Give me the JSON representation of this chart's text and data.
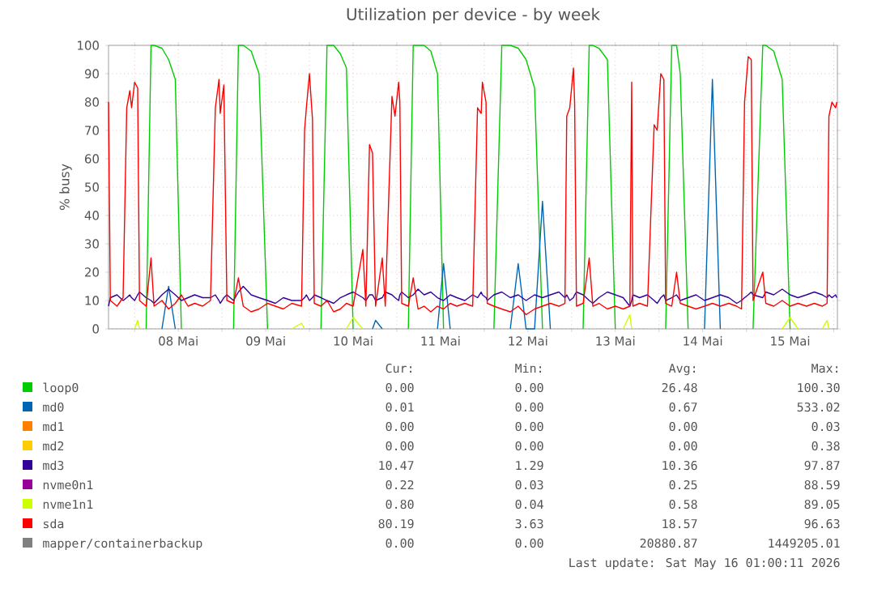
{
  "chart_data": {
    "type": "line",
    "title": "Utilization per device - by week",
    "ylabel": "% busy",
    "x": [
      "2026-05-07T16:50",
      "2026-05-07T17:20",
      "2026-05-07T19:10",
      "2026-05-07T20:50",
      "2026-05-07T21:50",
      "2026-05-07T22:40",
      "2026-05-07T23:10",
      "2026-05-08T00:00",
      "2026-05-08T00:50",
      "2026-05-08T01:20",
      "2026-05-08T03:10",
      "2026-05-08T04:30",
      "2026-05-08T05:20",
      "2026-05-08T07:30",
      "2026-05-08T09:20",
      "2026-05-08T11:10",
      "2026-05-08T12:50",
      "2026-05-08T14:40",
      "2026-05-08T16:30",
      "2026-05-08T18:40",
      "2026-05-08T20:50",
      "2026-05-08T22:10",
      "2026-05-08T23:10",
      "2026-05-08T23:30",
      "2026-05-09T00:30",
      "2026-05-09T01:20",
      "2026-05-09T03:10",
      "2026-05-09T04:30",
      "2026-05-09T05:50",
      "2026-05-09T08:00",
      "2026-05-09T10:10",
      "2026-05-09T12:30",
      "2026-05-09T14:40",
      "2026-05-09T16:50",
      "2026-05-09T19:10",
      "2026-05-09T21:50",
      "2026-05-09T22:40",
      "2026-05-09T23:10",
      "2026-05-10T00:00",
      "2026-05-10T00:50",
      "2026-05-10T01:20",
      "2026-05-10T03:10",
      "2026-05-10T04:50",
      "2026-05-10T06:40",
      "2026-05-10T08:30",
      "2026-05-10T10:10",
      "2026-05-10T12:00",
      "2026-05-10T14:40",
      "2026-05-10T15:30",
      "2026-05-10T16:30",
      "2026-05-10T17:20",
      "2026-05-10T18:10",
      "2026-05-10T20:00",
      "2026-05-10T20:50",
      "2026-05-10T22:40",
      "2026-05-10T23:30",
      "2026-05-11T00:30",
      "2026-05-11T00:50",
      "2026-05-11T01:20",
      "2026-05-11T03:10",
      "2026-05-11T04:30",
      "2026-05-11T05:50",
      "2026-05-11T07:30",
      "2026-05-11T09:20",
      "2026-05-11T11:10",
      "2026-05-11T12:50",
      "2026-05-11T14:40",
      "2026-05-11T16:30",
      "2026-05-11T18:40",
      "2026-05-11T20:50",
      "2026-05-11T22:10",
      "2026-05-11T23:10",
      "2026-05-11T23:30",
      "2026-05-12T00:30",
      "2026-05-12T00:50",
      "2026-05-12T02:40",
      "2026-05-12T04:50",
      "2026-05-12T07:10",
      "2026-05-12T09:20",
      "2026-05-12T11:30",
      "2026-05-12T13:50",
      "2026-05-12T16:00",
      "2026-05-12T18:10",
      "2026-05-12T20:30",
      "2026-05-12T22:10",
      "2026-05-12T22:40",
      "2026-05-12T23:30",
      "2026-05-13T00:30",
      "2026-05-13T00:50",
      "2026-05-13T01:20",
      "2026-05-13T03:10",
      "2026-05-13T04:50",
      "2026-05-13T05:50",
      "2026-05-13T07:30",
      "2026-05-13T09:50",
      "2026-05-13T12:00",
      "2026-05-13T14:10",
      "2026-05-13T16:00",
      "2026-05-13T16:30",
      "2026-05-13T16:50",
      "2026-05-13T18:40",
      "2026-05-13T20:50",
      "2026-05-13T22:40",
      "2026-05-13T23:30",
      "2026-05-14T00:30",
      "2026-05-14T01:20",
      "2026-05-14T01:50",
      "2026-05-14T03:30",
      "2026-05-14T04:50",
      "2026-05-14T05:50",
      "2026-05-14T08:00",
      "2026-05-14T10:10",
      "2026-05-14T12:30",
      "2026-05-14T14:40",
      "2026-05-14T16:50",
      "2026-05-14T19:10",
      "2026-05-14T21:20",
      "2026-05-14T22:40",
      "2026-05-14T23:30",
      "2026-05-15T00:30",
      "2026-05-15T01:20",
      "2026-05-15T01:50",
      "2026-05-15T04:30",
      "2026-05-15T05:20",
      "2026-05-15T07:30",
      "2026-05-15T09:50",
      "2026-05-15T12:00",
      "2026-05-15T14:10",
      "2026-05-15T16:30",
      "2026-05-15T18:40",
      "2026-05-15T20:50",
      "2026-05-15T22:10",
      "2026-05-15T22:40",
      "2026-05-15T23:30",
      "2026-05-16T00:30",
      "2026-05-16T00:50"
    ],
    "series": [
      {
        "name": "loop0",
        "color": "#00cc00",
        "values": [
          null,
          null,
          null,
          null,
          null,
          null,
          null,
          null,
          null,
          null,
          0,
          100,
          100,
          99,
          95,
          88,
          0,
          null,
          null,
          null,
          null,
          null,
          null,
          null,
          null,
          null,
          0,
          100,
          100,
          98,
          90,
          0,
          null,
          null,
          null,
          null,
          null,
          null,
          null,
          null,
          null,
          0,
          100,
          100,
          97,
          92,
          0,
          null,
          null,
          null,
          null,
          null,
          null,
          null,
          null,
          null,
          null,
          null,
          null,
          0,
          100,
          100,
          100,
          98,
          90,
          0,
          null,
          null,
          null,
          null,
          null,
          null,
          null,
          null,
          null,
          0,
          100,
          100,
          99,
          95,
          85,
          0,
          null,
          null,
          null,
          null,
          null,
          null,
          null,
          null,
          0,
          100,
          100,
          99,
          95,
          0,
          null,
          null,
          null,
          null,
          null,
          null,
          null,
          null,
          null,
          null,
          0,
          100,
          100,
          90,
          0,
          null,
          null,
          null,
          null,
          null,
          null,
          null,
          null,
          null,
          null,
          0,
          100,
          100,
          98,
          88,
          0,
          null,
          null,
          null,
          null,
          null,
          null,
          null,
          null,
          null
        ]
      },
      {
        "name": "md0",
        "color": "#0066b3",
        "values": [
          null,
          null,
          null,
          null,
          null,
          null,
          null,
          null,
          null,
          null,
          null,
          null,
          null,
          0,
          15,
          0,
          null,
          null,
          null,
          null,
          null,
          null,
          null,
          null,
          null,
          null,
          null,
          null,
          null,
          null,
          null,
          null,
          null,
          null,
          null,
          null,
          null,
          null,
          null,
          null,
          null,
          null,
          null,
          null,
          null,
          null,
          null,
          null,
          null,
          null,
          0,
          3,
          0,
          null,
          null,
          null,
          null,
          null,
          null,
          null,
          null,
          null,
          null,
          null,
          0,
          23,
          0,
          null,
          null,
          null,
          null,
          null,
          null,
          null,
          null,
          null,
          null,
          0,
          23,
          0,
          0,
          45,
          0,
          null,
          null,
          null,
          null,
          null,
          null,
          null,
          null,
          null,
          null,
          null,
          null,
          null,
          null,
          null,
          null,
          null,
          null,
          null,
          null,
          null,
          null,
          null,
          null,
          null,
          null,
          null,
          null,
          null,
          0,
          88,
          0,
          null,
          null,
          null,
          null,
          null,
          null,
          null,
          null,
          null,
          null,
          null,
          null,
          null,
          null,
          null,
          null,
          null,
          null,
          null,
          null,
          null
        ]
      },
      {
        "name": "md1",
        "color": "#ff8000",
        "values": [
          null,
          null,
          null,
          null,
          null,
          null,
          null,
          null,
          null,
          null,
          null,
          null,
          null,
          null,
          null,
          null,
          null,
          null,
          null,
          null,
          null,
          null,
          null,
          null,
          null,
          null,
          null,
          null,
          null,
          null,
          null,
          null,
          null,
          null,
          null,
          null,
          null,
          null,
          null,
          null,
          null,
          null,
          null,
          null,
          null,
          null,
          null,
          null,
          null,
          null,
          null,
          null,
          null,
          null,
          null,
          null,
          null,
          null,
          null,
          null,
          null,
          null,
          null,
          null,
          null,
          null,
          null,
          null,
          null,
          null,
          null,
          null,
          null,
          null,
          null,
          null,
          null,
          null,
          null,
          null,
          null,
          null,
          null,
          null,
          null,
          null,
          null,
          null,
          null,
          null,
          null,
          null,
          null,
          null,
          null,
          null,
          null,
          null,
          null,
          null,
          null,
          null,
          null,
          null,
          null,
          null,
          null,
          null,
          null,
          null,
          null,
          null,
          null,
          null,
          null,
          null,
          null,
          null,
          null,
          null,
          null,
          null,
          null,
          null,
          null,
          null,
          null,
          null,
          null,
          null,
          null,
          null,
          null,
          null,
          null,
          null
        ]
      },
      {
        "name": "md2",
        "color": "#ffcc00",
        "values": [
          null,
          null,
          null,
          null,
          null,
          null,
          null,
          null,
          null,
          null,
          null,
          null,
          null,
          null,
          null,
          null,
          null,
          null,
          null,
          null,
          null,
          null,
          null,
          null,
          null,
          null,
          null,
          null,
          null,
          null,
          null,
          null,
          null,
          null,
          null,
          null,
          null,
          null,
          null,
          null,
          null,
          null,
          null,
          null,
          null,
          null,
          null,
          null,
          null,
          null,
          null,
          null,
          null,
          null,
          null,
          null,
          null,
          null,
          null,
          null,
          null,
          null,
          null,
          null,
          null,
          null,
          null,
          null,
          null,
          null,
          null,
          null,
          null,
          null,
          null,
          null,
          null,
          null,
          null,
          null,
          null,
          null,
          null,
          null,
          null,
          null,
          null,
          null,
          null,
          null,
          null,
          null,
          null,
          null,
          null,
          null,
          null,
          null,
          null,
          null,
          null,
          null,
          null,
          null,
          null,
          null,
          null,
          null,
          null,
          null,
          null,
          null,
          null,
          null,
          null,
          null,
          null,
          null,
          null,
          null,
          null,
          null,
          null,
          null,
          null,
          null,
          null,
          null,
          null,
          null,
          null,
          null,
          null,
          null,
          null,
          null
        ]
      },
      {
        "name": "md3",
        "color": "#330099",
        "values": [
          8,
          11,
          12,
          10,
          11,
          12,
          11,
          10,
          12,
          13,
          11,
          10,
          9,
          12,
          14,
          12,
          10,
          11,
          12,
          11,
          11,
          12,
          10,
          9,
          11,
          12,
          10,
          13,
          15,
          12,
          11,
          10,
          9,
          11,
          10,
          10,
          11,
          12,
          10,
          11,
          12,
          11,
          10,
          9,
          11,
          12,
          13,
          11,
          10,
          12,
          12,
          10,
          11,
          13,
          12,
          11,
          10,
          12,
          13,
          11,
          12,
          14,
          12,
          13,
          11,
          10,
          12,
          11,
          10,
          12,
          11,
          13,
          12,
          11,
          10,
          12,
          13,
          11,
          12,
          10,
          12,
          11,
          12,
          13,
          11,
          12,
          10,
          11,
          12,
          13,
          12,
          10,
          9,
          11,
          13,
          12,
          11,
          8,
          10,
          12,
          11,
          12,
          10,
          9,
          11,
          12,
          10,
          11,
          12,
          10,
          11,
          12,
          10,
          11,
          12,
          11,
          9,
          10,
          11,
          12,
          13,
          12,
          11,
          13,
          12,
          14,
          12,
          11,
          12,
          13,
          12,
          11,
          12,
          11,
          12,
          11
        ]
      },
      {
        "name": "nvme0n1",
        "color": "#990099",
        "values": [
          null,
          null,
          null,
          null,
          null,
          null,
          null,
          null,
          null,
          null,
          null,
          null,
          null,
          null,
          null,
          null,
          null,
          null,
          null,
          null,
          null,
          null,
          null,
          null,
          null,
          null,
          null,
          null,
          null,
          null,
          null,
          null,
          null,
          null,
          null,
          null,
          null,
          null,
          null,
          null,
          null,
          null,
          null,
          null,
          null,
          null,
          null,
          null,
          null,
          null,
          null,
          null,
          null,
          null,
          null,
          null,
          null,
          null,
          null,
          null,
          null,
          null,
          null,
          null,
          null,
          null,
          null,
          null,
          null,
          null,
          null,
          null,
          null,
          null,
          null,
          null,
          null,
          null,
          null,
          null,
          null,
          null,
          null,
          null,
          null,
          null,
          null,
          null,
          null,
          null,
          null,
          null,
          null,
          null,
          null,
          null,
          null,
          null,
          null,
          null,
          null,
          null,
          null,
          null,
          null,
          null,
          null,
          null,
          null,
          null,
          null,
          null,
          null,
          null,
          null,
          null,
          null,
          null,
          null,
          null,
          null,
          null,
          null,
          null,
          null,
          null,
          null,
          null,
          null,
          null,
          null,
          null,
          null,
          null,
          null,
          null
        ]
      },
      {
        "name": "nvme1n1",
        "color": "#ccff00",
        "values": [
          null,
          null,
          null,
          null,
          null,
          null,
          null,
          0,
          3,
          0,
          null,
          null,
          null,
          null,
          null,
          null,
          null,
          null,
          null,
          null,
          null,
          null,
          null,
          null,
          null,
          null,
          null,
          null,
          null,
          null,
          null,
          null,
          null,
          null,
          0,
          2,
          0,
          null,
          null,
          null,
          null,
          null,
          null,
          null,
          null,
          0,
          4,
          0,
          null,
          null,
          null,
          null,
          null,
          null,
          null,
          null,
          null,
          null,
          null,
          null,
          null,
          null,
          null,
          null,
          null,
          null,
          null,
          null,
          null,
          null,
          null,
          null,
          null,
          null,
          null,
          null,
          null,
          null,
          null,
          null,
          null,
          null,
          null,
          null,
          null,
          null,
          null,
          null,
          null,
          null,
          null,
          null,
          null,
          null,
          null,
          null,
          0,
          5,
          0,
          null,
          null,
          null,
          null,
          null,
          null,
          null,
          null,
          null,
          null,
          null,
          null,
          null,
          null,
          null,
          null,
          null,
          null,
          null,
          null,
          null,
          null,
          null,
          null,
          null,
          null,
          0,
          4,
          0,
          null,
          null,
          0,
          3,
          0,
          null,
          null,
          null
        ]
      },
      {
        "name": "sda",
        "color": "#ff0000",
        "values": [
          80,
          10,
          8,
          11,
          78,
          84,
          78,
          87,
          85,
          10,
          8,
          25,
          8,
          10,
          7,
          9,
          12,
          8,
          9,
          8,
          10,
          78,
          88,
          76,
          86,
          10,
          9,
          18,
          8,
          6,
          7,
          9,
          8,
          7,
          9,
          8,
          70,
          78,
          90,
          74,
          9,
          8,
          10,
          6,
          7,
          9,
          8,
          28,
          8,
          65,
          62,
          8,
          25,
          8,
          82,
          75,
          87,
          80,
          9,
          8,
          18,
          7,
          8,
          6,
          8,
          7,
          9,
          8,
          9,
          8,
          78,
          76,
          87,
          80,
          9,
          8,
          7,
          6,
          8,
          5,
          7,
          8,
          9,
          8,
          9,
          75,
          78,
          92,
          80,
          8,
          9,
          25,
          8,
          9,
          7,
          8,
          7,
          8,
          87,
          8,
          9,
          8,
          72,
          70,
          90,
          88,
          9,
          8,
          20,
          9,
          8,
          7,
          8,
          9,
          8,
          9,
          8,
          7,
          80,
          96,
          95,
          10,
          20,
          9,
          8,
          10,
          8,
          9,
          8,
          9,
          8,
          9,
          75,
          80,
          78,
          80
        ]
      },
      {
        "name": "mapper/containerbackup",
        "color": "#808080",
        "values": [
          null,
          null,
          null,
          null,
          null,
          null,
          null,
          null,
          null,
          null,
          null,
          null,
          null,
          null,
          null,
          null,
          null,
          null,
          null,
          null,
          null,
          null,
          null,
          null,
          null,
          null,
          null,
          null,
          null,
          null,
          null,
          null,
          null,
          null,
          null,
          null,
          null,
          null,
          null,
          null,
          null,
          null,
          null,
          null,
          null,
          null,
          null,
          null,
          null,
          null,
          null,
          null,
          null,
          null,
          null,
          null,
          null,
          null,
          null,
          null,
          null,
          null,
          null,
          null,
          null,
          null,
          null,
          null,
          null,
          null,
          null,
          null,
          null,
          null,
          null,
          null,
          null,
          null,
          null,
          null,
          null,
          null,
          null,
          null,
          null,
          null,
          null,
          null,
          null,
          null,
          null,
          null,
          null,
          null,
          null,
          null,
          null,
          null,
          null,
          null,
          null,
          null,
          null,
          null,
          null,
          null,
          null,
          null,
          null,
          null,
          null,
          null,
          null,
          null,
          null,
          null,
          null,
          null,
          null,
          null,
          null,
          null,
          null,
          null,
          null,
          null,
          null,
          null,
          null,
          null,
          null,
          null,
          null,
          null,
          null,
          null
        ]
      }
    ],
    "xlim": [
      "2026-05-07T16:50",
      "2026-05-16T01:00"
    ],
    "xticks": [
      {
        "value": "2026-05-08T00:00",
        "label": null
      },
      {
        "value": "2026-05-08T12:00",
        "label": "08 Mai"
      },
      {
        "value": "2026-05-09T00:00",
        "label": null
      },
      {
        "value": "2026-05-09T12:00",
        "label": "09 Mai"
      },
      {
        "value": "2026-05-10T00:00",
        "label": null
      },
      {
        "value": "2026-05-10T12:00",
        "label": "10 Mai"
      },
      {
        "value": "2026-05-11T00:00",
        "label": null
      },
      {
        "value": "2026-05-11T12:00",
        "label": "11 Mai"
      },
      {
        "value": "2026-05-12T00:00",
        "label": null
      },
      {
        "value": "2026-05-12T12:00",
        "label": "12 Mai"
      },
      {
        "value": "2026-05-13T00:00",
        "label": null
      },
      {
        "value": "2026-05-13T12:00",
        "label": "13 Mai"
      },
      {
        "value": "2026-05-14T00:00",
        "label": null
      },
      {
        "value": "2026-05-14T12:00",
        "label": "14 Mai"
      },
      {
        "value": "2026-05-15T00:00",
        "label": null
      },
      {
        "value": "2026-05-15T12:00",
        "label": "15 Mai"
      },
      {
        "value": "2026-05-16T00:00",
        "label": null
      }
    ],
    "ylim": [
      0,
      100
    ],
    "yticks": [
      0,
      10,
      20,
      30,
      40,
      50,
      60,
      70,
      80,
      90,
      100
    ],
    "grid": true,
    "legend": "bottom",
    "annotations": [
      "Cur:",
      "Min:",
      "Avg:",
      "Max:",
      "0.00",
      "0.00",
      "26.48",
      "100.30",
      "0.01",
      "0.00",
      "0.67",
      "533.02",
      "0.00",
      "0.00",
      "0.00",
      "0.03",
      "0.00",
      "0.00",
      "0.00",
      "0.38",
      "10.47",
      "1.29",
      "10.36",
      "97.87",
      "0.22",
      "0.03",
      "0.25",
      "88.59",
      "0.80",
      "0.04",
      "0.58",
      "89.05",
      "80.19",
      "3.63",
      "18.57",
      "96.63",
      "0.00",
      "0.00",
      "20880.87",
      "1449205.01",
      "Last update: Sat May 16 01:00:11 2026"
    ]
  }
}
